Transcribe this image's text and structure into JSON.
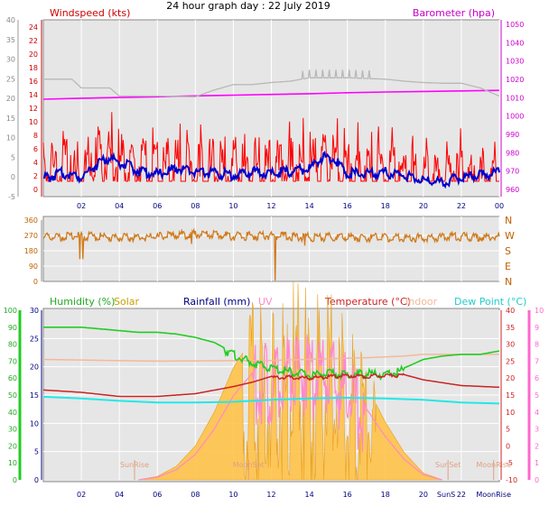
{
  "title": "24 hour graph day : 22 July 2019",
  "colors": {
    "wind": "#ff0000",
    "gust_gray": "#b8b8b8",
    "baro": "#ff00ff",
    "wind_dir": "#d07a1a",
    "humidity": "#22cc22",
    "solar": "#ffc040",
    "uv": "#ff88cc",
    "temperature": "#cc2222",
    "indoor": "#f4b89a",
    "dewpoint": "#22e8e8",
    "rain": "#000080",
    "plot_bg": "#e6e6e6"
  },
  "x_ticks": [
    "02",
    "04",
    "06",
    "08",
    "10",
    "12",
    "14",
    "16",
    "18",
    "20",
    "22",
    "00"
  ],
  "chart_data": [
    {
      "type": "line",
      "panel": "wind-barometer",
      "labels": {
        "left": "Windspeed (kts)",
        "right": "Barometer (hpa)"
      },
      "left_axis": {
        "ylim": [
          -5,
          40
        ],
        "ticks": [
          "-5",
          "0",
          "5",
          "10",
          "15",
          "20",
          "25",
          "30",
          "35",
          "40"
        ]
      },
      "left_inner_axis": {
        "ylim": [
          0,
          24
        ],
        "ticks": [
          "0",
          "2",
          "4",
          "6",
          "8",
          "10",
          "12",
          "14",
          "16",
          "18",
          "20",
          "22",
          "24"
        ]
      },
      "right_axis": {
        "ylim": [
          960,
          1050
        ],
        "ticks": [
          "960",
          "970",
          "980",
          "990",
          "1000",
          "1010",
          "1020",
          "1030",
          "1040",
          "1050"
        ]
      },
      "x_range_hours": [
        0,
        24
      ],
      "series": [
        {
          "key": "baro",
          "x": [
            0,
            2,
            4,
            6,
            8,
            10,
            12,
            14,
            16,
            18,
            20,
            22,
            24
          ],
          "y": [
            1009.2,
            1009.7,
            1010.1,
            1010.5,
            1011.0,
            1011.4,
            1011.8,
            1012.2,
            1012.7,
            1013.1,
            1013.4,
            1013.7,
            1014.0
          ]
        },
        {
          "key": "gust_gray",
          "x": [
            0,
            1.5,
            2,
            3.5,
            4,
            6,
            8,
            9,
            10,
            11,
            12,
            13,
            14,
            15,
            16,
            17,
            18,
            19,
            20,
            21,
            22,
            23,
            24
          ],
          "y": [
            16.3,
            16.3,
            15.0,
            15.0,
            13.8,
            13.8,
            13.7,
            14.7,
            15.5,
            15.5,
            15.8,
            16.0,
            16.5,
            16.5,
            16.5,
            16.4,
            16.3,
            16.0,
            15.8,
            15.7,
            15.7,
            15.0,
            13.8
          ]
        },
        {
          "key": "wind",
          "x": [
            0,
            1,
            2,
            3,
            4,
            5,
            6,
            7,
            8,
            9,
            10,
            11,
            12,
            13,
            14,
            15,
            16,
            17,
            18,
            19,
            20,
            21,
            22,
            23,
            24
          ],
          "y": [
            5.2,
            6.0,
            4.2,
            6.5,
            6.0,
            5.3,
            4.3,
            5.3,
            4.5,
            4.8,
            5.8,
            5.4,
            4.8,
            5.5,
            5.2,
            6.5,
            4.8,
            4.0,
            4.6,
            4.1,
            3.7,
            3.5,
            3.5,
            3.6,
            4.0
          ]
        },
        {
          "key": "avg_wind",
          "x": [
            0,
            1,
            2,
            3,
            3.5,
            4,
            5,
            6,
            7,
            8,
            9,
            10,
            11,
            12,
            13,
            14,
            14.7,
            15.3,
            16,
            17,
            18,
            19,
            20,
            21,
            22,
            23,
            24
          ],
          "y": [
            2.0,
            2.8,
            2.3,
            4.5,
            5.0,
            4.4,
            3.2,
            2.6,
            3.5,
            3.0,
            2.8,
            2.5,
            3.0,
            2.8,
            3.0,
            3.5,
            5.2,
            4.8,
            2.8,
            2.6,
            2.9,
            2.4,
            1.8,
            1.4,
            2.2,
            2.5,
            3.0
          ]
        }
      ]
    },
    {
      "type": "line",
      "panel": "wind-direction",
      "labels": {
        "right_compass": [
          "N",
          "W",
          "S",
          "E",
          "N"
        ]
      },
      "left_axis": {
        "ylim": [
          0,
          360
        ],
        "ticks": [
          "0",
          "90",
          "180",
          "270",
          "360"
        ]
      },
      "x_range_hours": [
        0,
        24
      ],
      "series": [
        {
          "key": "wind_dir",
          "x": [
            0,
            2,
            4,
            6,
            8,
            10,
            12,
            14,
            16,
            18,
            20,
            22,
            24
          ],
          "y": [
            270,
            280,
            268,
            275,
            292,
            278,
            280,
            272,
            275,
            268,
            270,
            275,
            272
          ]
        }
      ]
    },
    {
      "type": "area",
      "panel": "humidity-temperature",
      "labels": {
        "humidity": "Humidity  (%)",
        "solar": "Solar",
        "rainfall": "Rainfall (mm)",
        "uv": "UV",
        "temperature": "Temperature (°C)",
        "indoor": "Indoor",
        "dewpoint": "Dew Point (°C)"
      },
      "humidity_axis": {
        "ylim": [
          0,
          100
        ],
        "ticks": [
          "0",
          "10",
          "20",
          "30",
          "40",
          "50",
          "60",
          "70",
          "80",
          "90",
          "100"
        ]
      },
      "rain_axis": {
        "ylim": [
          0,
          30
        ],
        "ticks": [
          "0",
          "5",
          "10",
          "15",
          "20",
          "25",
          "30"
        ]
      },
      "temp_axis": {
        "ylim": [
          -10,
          40
        ],
        "ticks": [
          "-10",
          "-5",
          "0",
          "5",
          "10",
          "15",
          "20",
          "25",
          "30",
          "35",
          "40"
        ]
      },
      "uv_axis": {
        "ylim": [
          0,
          10
        ],
        "ticks": [
          "0",
          "1",
          "2",
          "3",
          "4",
          "5",
          "6",
          "7",
          "8",
          "9",
          "10"
        ]
      },
      "markers": [
        {
          "label": "SunRise",
          "hour": 4.8
        },
        {
          "label": "MoonSet",
          "hour": 10.8
        },
        {
          "label": "SunSet",
          "hour": 21.3
        },
        {
          "label": "MoonRise",
          "hour": 23.7
        }
      ],
      "x_ticks": [
        "02",
        "04",
        "06",
        "08",
        "10",
        "12",
        "14",
        "16",
        "18",
        "20",
        "SunS",
        "22",
        "MoonRise"
      ],
      "x_range_hours": [
        0,
        24
      ],
      "series": [
        {
          "key": "humidity",
          "x": [
            0,
            2,
            3,
            4,
            5,
            6,
            7,
            8,
            9,
            9.5,
            10,
            11,
            12,
            13,
            14,
            15,
            16,
            17,
            18,
            19,
            20,
            21,
            22,
            23,
            24
          ],
          "y": [
            90,
            90,
            89,
            88,
            87,
            87,
            86,
            84,
            81,
            78,
            75,
            70,
            67,
            65,
            63,
            64,
            63,
            64,
            63,
            66,
            71,
            73,
            74,
            74,
            76
          ]
        },
        {
          "key": "indoor",
          "x": [
            0,
            6,
            12,
            17,
            19,
            20,
            24
          ],
          "y": [
            25.5,
            25.0,
            25.2,
            26.0,
            26.5,
            27.0,
            27.0
          ]
        },
        {
          "key": "temperature",
          "x": [
            0,
            2,
            4,
            6,
            8,
            10,
            11,
            12,
            13,
            14,
            15,
            16,
            17,
            18,
            19,
            20,
            22,
            24
          ],
          "y": [
            16.5,
            15.8,
            14.6,
            14.6,
            15.4,
            17.5,
            18.8,
            20.5,
            20.5,
            20.3,
            20.7,
            21.0,
            20.8,
            21.2,
            21.0,
            19.5,
            17.8,
            17.3
          ]
        },
        {
          "key": "dewpoint",
          "x": [
            0,
            2,
            4,
            6,
            8,
            10,
            12,
            14,
            16,
            18,
            20,
            22,
            24
          ],
          "y": [
            14.5,
            14.0,
            13.3,
            12.8,
            12.8,
            13.0,
            13.6,
            14.0,
            14.2,
            14.0,
            13.6,
            12.8,
            12.5
          ]
        },
        {
          "key": "solar_uv",
          "x": [
            5,
            6,
            7,
            8,
            9,
            10,
            11,
            12,
            13,
            14,
            15,
            16,
            17,
            18,
            19,
            20,
            21,
            22
          ],
          "y": [
            0,
            0.1,
            0.4,
            1.0,
            2.0,
            3.3,
            4.2,
            4.3,
            4.8,
            4.5,
            4.5,
            3.8,
            2.8,
            1.7,
            0.8,
            0.2,
            0.0,
            0.0
          ]
        }
      ]
    }
  ]
}
